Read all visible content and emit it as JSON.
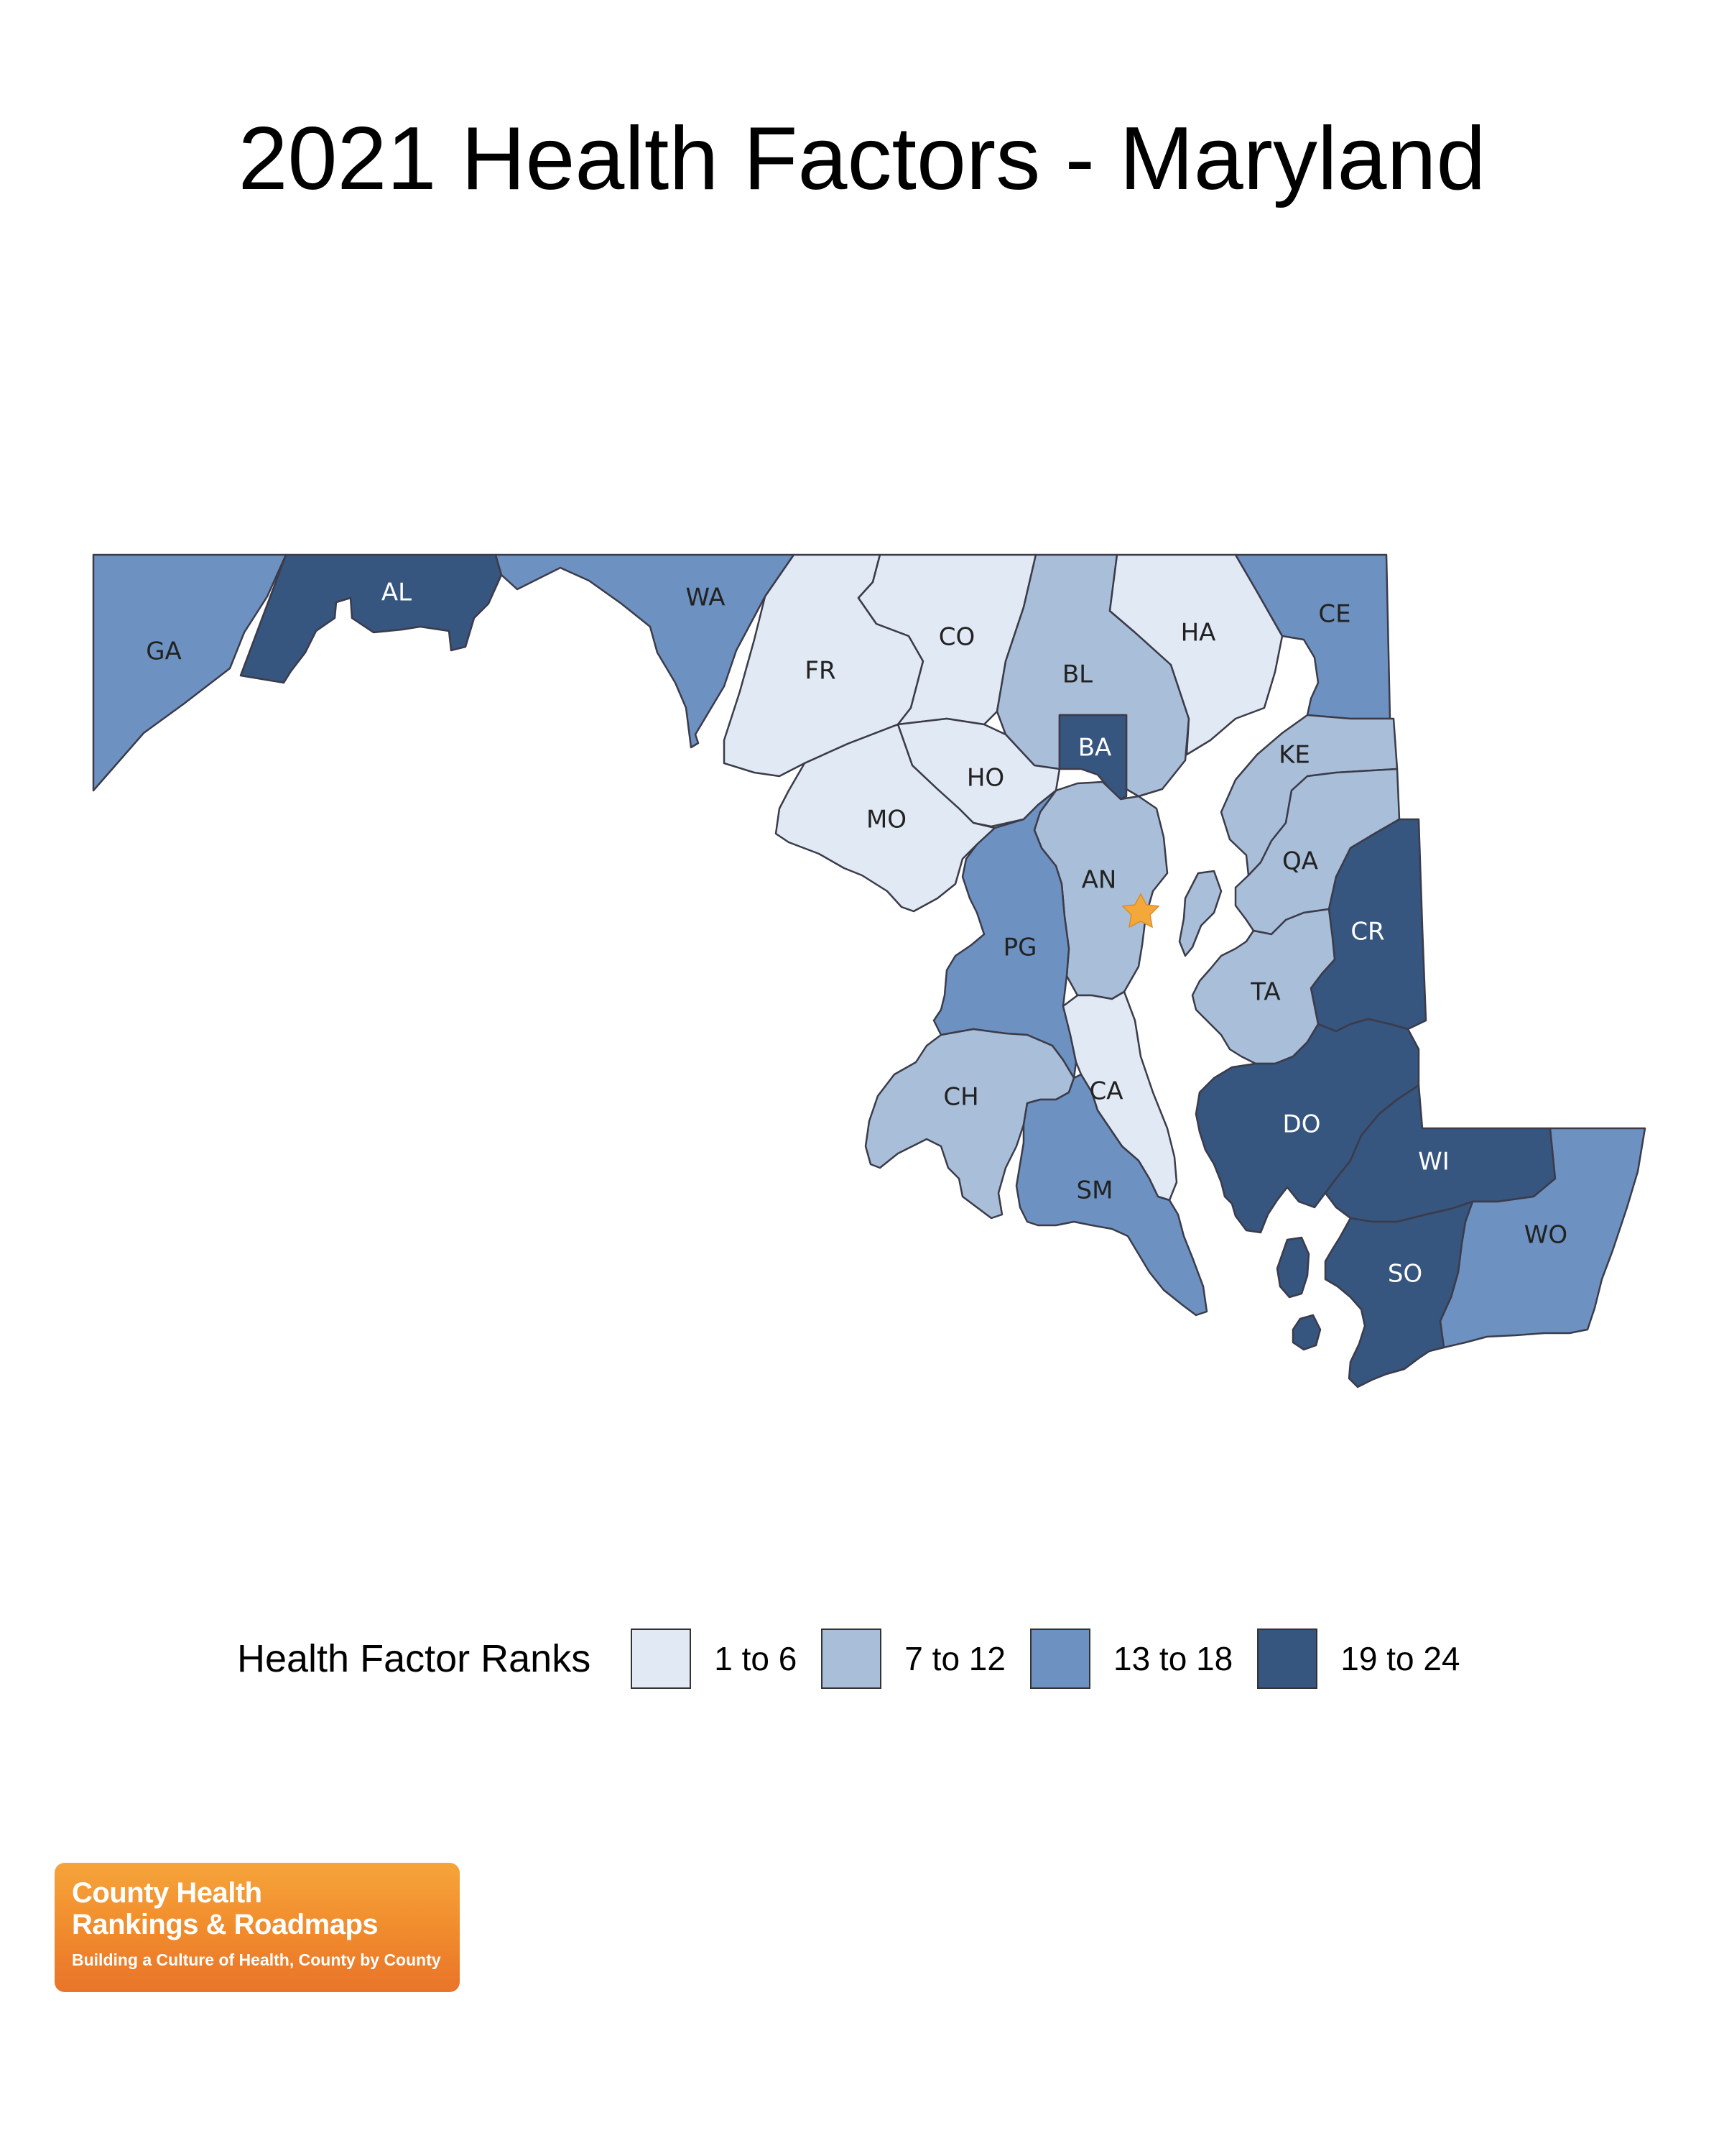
{
  "title": "2021 Health Factors - Maryland",
  "legend": {
    "title": "Health Factor Ranks",
    "items": [
      {
        "label": "1 to 6",
        "color": "#e1e9f4"
      },
      {
        "label": "7 to 12",
        "color": "#a9bed9"
      },
      {
        "label": "13 to 18",
        "color": "#6d92c1"
      },
      {
        "label": "19 to 24",
        "color": "#36557f"
      }
    ]
  },
  "counties": [
    {
      "abbr": "GA",
      "rank_group": 2
    },
    {
      "abbr": "AL",
      "rank_group": 3
    },
    {
      "abbr": "WA",
      "rank_group": 2
    },
    {
      "abbr": "FR",
      "rank_group": 0
    },
    {
      "abbr": "CO",
      "rank_group": 0
    },
    {
      "abbr": "BL",
      "rank_group": 1
    },
    {
      "abbr": "HA",
      "rank_group": 0
    },
    {
      "abbr": "CE",
      "rank_group": 2
    },
    {
      "abbr": "BA",
      "rank_group": 3
    },
    {
      "abbr": "HO",
      "rank_group": 0
    },
    {
      "abbr": "MO",
      "rank_group": 0
    },
    {
      "abbr": "KE",
      "rank_group": 1
    },
    {
      "abbr": "AN",
      "rank_group": 1
    },
    {
      "abbr": "QA",
      "rank_group": 1
    },
    {
      "abbr": "PG",
      "rank_group": 2
    },
    {
      "abbr": "CR",
      "rank_group": 3
    },
    {
      "abbr": "TA",
      "rank_group": 1
    },
    {
      "abbr": "CA",
      "rank_group": 0
    },
    {
      "abbr": "CH",
      "rank_group": 1
    },
    {
      "abbr": "DO",
      "rank_group": 3
    },
    {
      "abbr": "WI",
      "rank_group": 3
    },
    {
      "abbr": "SM",
      "rank_group": 2
    },
    {
      "abbr": "WO",
      "rank_group": 2
    },
    {
      "abbr": "SO",
      "rank_group": 3
    }
  ],
  "capital_marker": {
    "name": "star",
    "color": "#f5a83a"
  },
  "logo": {
    "line1": "County Health",
    "line2": "Rankings & Roadmaps",
    "tagline": "Building a Culture of Health, County by County"
  }
}
